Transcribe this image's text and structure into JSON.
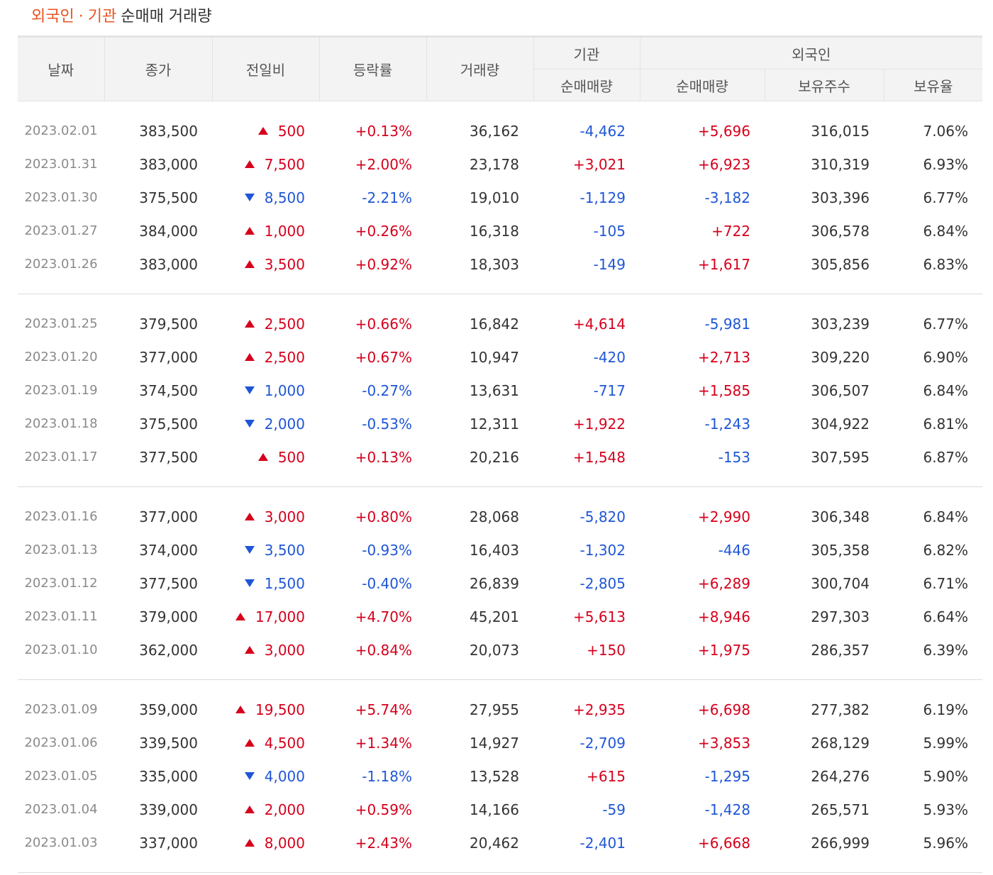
{
  "title": {
    "part1": "외국인",
    "sep": "·",
    "part2": "기관",
    "rest": "순매매 거래량"
  },
  "headers": {
    "date": "날짜",
    "close": "종가",
    "change": "전일비",
    "rate": "등락률",
    "volume": "거래량",
    "institution": "기관",
    "foreign": "외국인",
    "inst_net": "순매매량",
    "foreign_net": "순매매량",
    "holdings": "보유주수",
    "holding_rate": "보유율"
  },
  "colors": {
    "up": "#d6001c",
    "down": "#1f56d6",
    "accent": "#e8531f"
  },
  "groups": [
    [
      {
        "date": "2023.02.01",
        "close": "383,500",
        "dir": "up",
        "change": "500",
        "rate": "+0.13%",
        "volume": "36,162",
        "inst": "-4,462",
        "foreign": "+5,696",
        "holdings": "316,015",
        "holding_rate": "7.06%"
      },
      {
        "date": "2023.01.31",
        "close": "383,000",
        "dir": "up",
        "change": "7,500",
        "rate": "+2.00%",
        "volume": "23,178",
        "inst": "+3,021",
        "foreign": "+6,923",
        "holdings": "310,319",
        "holding_rate": "6.93%"
      },
      {
        "date": "2023.01.30",
        "close": "375,500",
        "dir": "down",
        "change": "8,500",
        "rate": "-2.21%",
        "volume": "19,010",
        "inst": "-1,129",
        "foreign": "-3,182",
        "holdings": "303,396",
        "holding_rate": "6.77%"
      },
      {
        "date": "2023.01.27",
        "close": "384,000",
        "dir": "up",
        "change": "1,000",
        "rate": "+0.26%",
        "volume": "16,318",
        "inst": "-105",
        "foreign": "+722",
        "holdings": "306,578",
        "holding_rate": "6.84%"
      },
      {
        "date": "2023.01.26",
        "close": "383,000",
        "dir": "up",
        "change": "3,500",
        "rate": "+0.92%",
        "volume": "18,303",
        "inst": "-149",
        "foreign": "+1,617",
        "holdings": "305,856",
        "holding_rate": "6.83%"
      }
    ],
    [
      {
        "date": "2023.01.25",
        "close": "379,500",
        "dir": "up",
        "change": "2,500",
        "rate": "+0.66%",
        "volume": "16,842",
        "inst": "+4,614",
        "foreign": "-5,981",
        "holdings": "303,239",
        "holding_rate": "6.77%"
      },
      {
        "date": "2023.01.20",
        "close": "377,000",
        "dir": "up",
        "change": "2,500",
        "rate": "+0.67%",
        "volume": "10,947",
        "inst": "-420",
        "foreign": "+2,713",
        "holdings": "309,220",
        "holding_rate": "6.90%"
      },
      {
        "date": "2023.01.19",
        "close": "374,500",
        "dir": "down",
        "change": "1,000",
        "rate": "-0.27%",
        "volume": "13,631",
        "inst": "-717",
        "foreign": "+1,585",
        "holdings": "306,507",
        "holding_rate": "6.84%"
      },
      {
        "date": "2023.01.18",
        "close": "375,500",
        "dir": "down",
        "change": "2,000",
        "rate": "-0.53%",
        "volume": "12,311",
        "inst": "+1,922",
        "foreign": "-1,243",
        "holdings": "304,922",
        "holding_rate": "6.81%"
      },
      {
        "date": "2023.01.17",
        "close": "377,500",
        "dir": "up",
        "change": "500",
        "rate": "+0.13%",
        "volume": "20,216",
        "inst": "+1,548",
        "foreign": "-153",
        "holdings": "307,595",
        "holding_rate": "6.87%"
      }
    ],
    [
      {
        "date": "2023.01.16",
        "close": "377,000",
        "dir": "up",
        "change": "3,000",
        "rate": "+0.80%",
        "volume": "28,068",
        "inst": "-5,820",
        "foreign": "+2,990",
        "holdings": "306,348",
        "holding_rate": "6.84%"
      },
      {
        "date": "2023.01.13",
        "close": "374,000",
        "dir": "down",
        "change": "3,500",
        "rate": "-0.93%",
        "volume": "16,403",
        "inst": "-1,302",
        "foreign": "-446",
        "holdings": "305,358",
        "holding_rate": "6.82%"
      },
      {
        "date": "2023.01.12",
        "close": "377,500",
        "dir": "down",
        "change": "1,500",
        "rate": "-0.40%",
        "volume": "26,839",
        "inst": "-2,805",
        "foreign": "+6,289",
        "holdings": "300,704",
        "holding_rate": "6.71%"
      },
      {
        "date": "2023.01.11",
        "close": "379,000",
        "dir": "up",
        "change": "17,000",
        "rate": "+4.70%",
        "volume": "45,201",
        "inst": "+5,613",
        "foreign": "+8,946",
        "holdings": "297,303",
        "holding_rate": "6.64%"
      },
      {
        "date": "2023.01.10",
        "close": "362,000",
        "dir": "up",
        "change": "3,000",
        "rate": "+0.84%",
        "volume": "20,073",
        "inst": "+150",
        "foreign": "+1,975",
        "holdings": "286,357",
        "holding_rate": "6.39%"
      }
    ],
    [
      {
        "date": "2023.01.09",
        "close": "359,000",
        "dir": "up",
        "change": "19,500",
        "rate": "+5.74%",
        "volume": "27,955",
        "inst": "+2,935",
        "foreign": "+6,698",
        "holdings": "277,382",
        "holding_rate": "6.19%"
      },
      {
        "date": "2023.01.06",
        "close": "339,500",
        "dir": "up",
        "change": "4,500",
        "rate": "+1.34%",
        "volume": "14,927",
        "inst": "-2,709",
        "foreign": "+3,853",
        "holdings": "268,129",
        "holding_rate": "5.99%"
      },
      {
        "date": "2023.01.05",
        "close": "335,000",
        "dir": "down",
        "change": "4,000",
        "rate": "-1.18%",
        "volume": "13,528",
        "inst": "+615",
        "foreign": "-1,295",
        "holdings": "264,276",
        "holding_rate": "5.90%"
      },
      {
        "date": "2023.01.04",
        "close": "339,000",
        "dir": "up",
        "change": "2,000",
        "rate": "+0.59%",
        "volume": "14,166",
        "inst": "-59",
        "foreign": "-1,428",
        "holdings": "265,571",
        "holding_rate": "5.93%"
      },
      {
        "date": "2023.01.03",
        "close": "337,000",
        "dir": "up",
        "change": "8,000",
        "rate": "+2.43%",
        "volume": "20,462",
        "inst": "-2,401",
        "foreign": "+6,668",
        "holdings": "266,999",
        "holding_rate": "5.96%"
      }
    ]
  ]
}
